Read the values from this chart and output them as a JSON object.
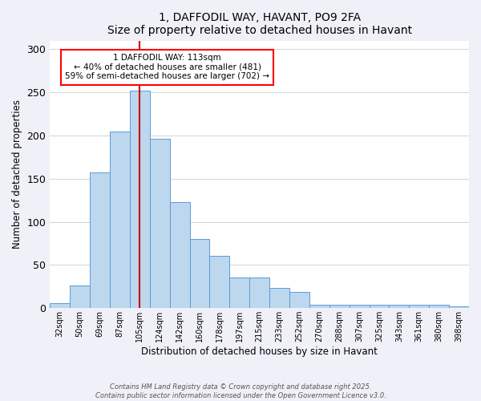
{
  "title": "1, DAFFODIL WAY, HAVANT, PO9 2FA",
  "subtitle": "Size of property relative to detached houses in Havant",
  "xlabel": "Distribution of detached houses by size in Havant",
  "ylabel": "Number of detached properties",
  "categories": [
    "32sqm",
    "50sqm",
    "69sqm",
    "87sqm",
    "105sqm",
    "124sqm",
    "142sqm",
    "160sqm",
    "178sqm",
    "197sqm",
    "215sqm",
    "233sqm",
    "252sqm",
    "270sqm",
    "288sqm",
    "307sqm",
    "325sqm",
    "343sqm",
    "361sqm",
    "380sqm",
    "398sqm"
  ],
  "bar_heights": [
    6,
    26,
    157,
    205,
    252,
    196,
    123,
    80,
    61,
    35,
    35,
    23,
    19,
    4,
    4,
    4,
    4,
    4,
    4,
    4,
    2
  ],
  "bar_color": "#bdd7ee",
  "bar_edge_color": "#5b9bd5",
  "vline_x": 4.0,
  "vline_color": "#cc0000",
  "ylim": [
    0,
    310
  ],
  "yticks": [
    0,
    50,
    100,
    150,
    200,
    250,
    300
  ],
  "annotation_title": "1 DAFFODIL WAY: 113sqm",
  "annotation_line1": "← 40% of detached houses are smaller (481)",
  "annotation_line2": "59% of semi-detached houses are larger (702) →",
  "footer1": "Contains HM Land Registry data © Crown copyright and database right 2025.",
  "footer2": "Contains public sector information licensed under the Open Government Licence v3.0.",
  "bg_color": "#f0f0f8",
  "plot_bg_color": "#ffffff"
}
